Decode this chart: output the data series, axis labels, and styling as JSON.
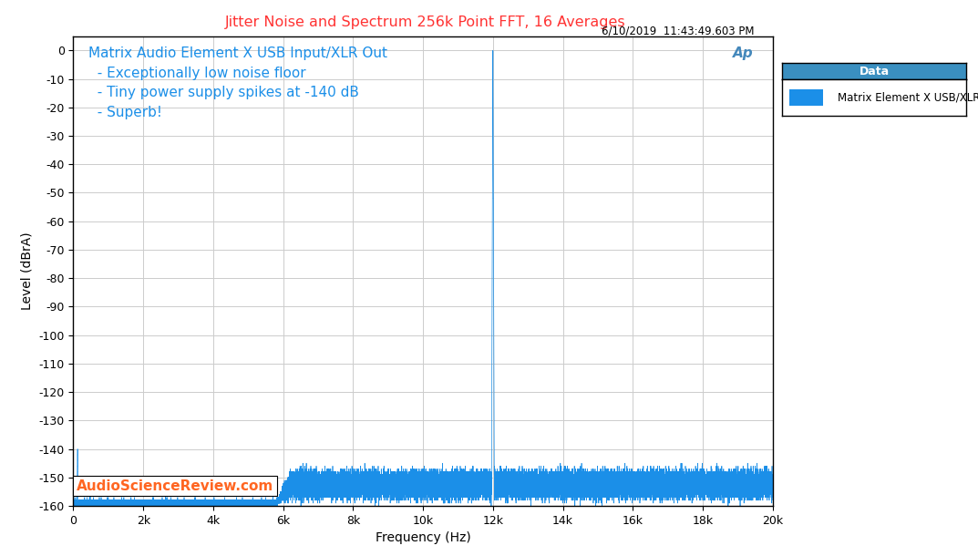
{
  "title": "Jitter Noise and Spectrum 256k Point FFT, 16 Averages",
  "title_color": "#FF3333",
  "datetime_text": "6/10/2019  11:43:49.603 PM",
  "xlabel": "Frequency (Hz)",
  "ylabel": "Level (dBrA)",
  "xlim": [
    0,
    20000
  ],
  "ylim": [
    -160,
    5
  ],
  "yticks": [
    0,
    -10,
    -20,
    -30,
    -40,
    -50,
    -60,
    -70,
    -80,
    -90,
    -100,
    -110,
    -120,
    -130,
    -140,
    -150,
    -160
  ],
  "xticks": [
    0,
    2000,
    4000,
    6000,
    8000,
    10000,
    12000,
    14000,
    16000,
    18000,
    20000
  ],
  "xtick_labels": [
    "0",
    "2k",
    "4k",
    "6k",
    "8k",
    "10k",
    "12k",
    "14k",
    "16k",
    "18k",
    "20k"
  ],
  "line_color": "#1B8FE8",
  "noise_floor_low": -160,
  "noise_floor_high": -153,
  "noise_std_low": 0.5,
  "noise_std_high": 2.0,
  "main_spike_freq": 12000,
  "main_spike_top": 0,
  "small_spike1_freq": 120,
  "small_spike1_level": -140,
  "small_spike2_freq": 480,
  "small_spike2_level": -150,
  "annotation_lines": [
    "Matrix Audio Element X USB Input/XLR Out",
    "  - Exceptionally low noise floor",
    "  - Tiny power supply spikes at -140 dB",
    "  - Superb!"
  ],
  "annotation_color": "#1B8FE8",
  "annotation_fontsize": 11,
  "watermark_text": "AudioScienceReview.com",
  "watermark_color": "#FF6622",
  "watermark_fontsize": 11,
  "ap_logo_color": "#4488BB",
  "legend_title": "Data",
  "legend_title_bg": "#3A8FC0",
  "legend_label": "Matrix Element X USB/XLR",
  "legend_color": "#1B8FE8",
  "background_color": "#FFFFFF",
  "grid_color": "#CCCCCC",
  "border_color": "#000000",
  "title_fontsize": 11.5,
  "datetime_fontsize": 8.5,
  "tick_fontsize": 9,
  "axis_label_fontsize": 10
}
